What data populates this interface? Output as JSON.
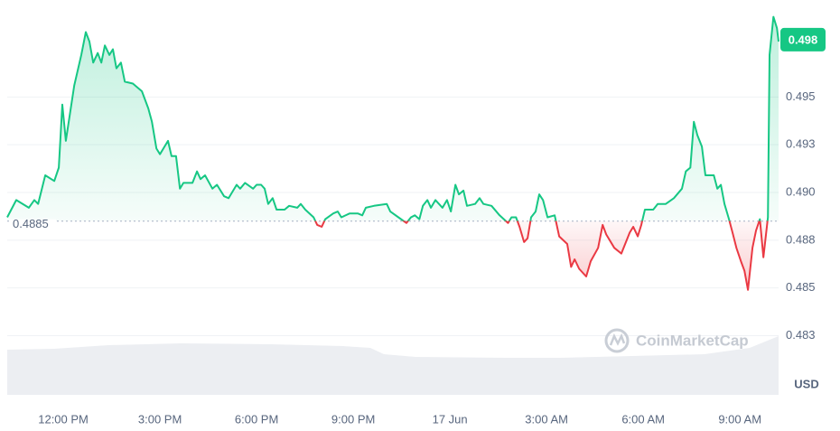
{
  "chart_data": {
    "type": "line",
    "color": "#16c784",
    "down_color": "#ea3943",
    "baseline": 0.4885,
    "current_price": 0.498,
    "y_unit": "USD",
    "watermark": "CoinMarketCap",
    "grid": true,
    "xlim": [
      -1.74,
      22.2
    ],
    "xticks": [
      {
        "value": 0,
        "label": "12:00 PM"
      },
      {
        "value": 3,
        "label": "3:00 PM"
      },
      {
        "value": 6,
        "label": "6:00 PM"
      },
      {
        "value": 9,
        "label": "9:00 PM"
      },
      {
        "value": 12,
        "label": "17 Jun"
      },
      {
        "value": 15,
        "label": "3:00 AM"
      },
      {
        "value": 18,
        "label": "6:00 AM"
      },
      {
        "value": 21,
        "label": "9:00 AM"
      }
    ],
    "ylim": [
      0.4794,
      0.4997
    ],
    "yticks": [
      {
        "value": 0.4825,
        "label": "0.483"
      },
      0.485,
      {
        "value": 0.4875,
        "label": "0.488"
      },
      {
        "value": 0.49,
        "label": "0.490"
      },
      {
        "value": 0.4925,
        "label": "0.493"
      },
      0.495
    ],
    "x": [
      -1.74,
      -1.46,
      -1.07,
      -0.9,
      -0.78,
      -0.56,
      -0.28,
      -0.14,
      -0.03,
      0.08,
      0.34,
      0.56,
      0.7,
      0.81,
      0.93,
      1.07,
      1.18,
      1.29,
      1.43,
      1.54,
      1.65,
      1.79,
      1.91,
      2.16,
      2.44,
      2.64,
      2.75,
      2.89,
      3.0,
      3.25,
      3.36,
      3.5,
      3.62,
      3.73,
      4.01,
      4.15,
      4.26,
      4.4,
      4.63,
      4.77,
      4.99,
      5.13,
      5.38,
      5.49,
      5.64,
      5.89,
      6.0,
      6.14,
      6.25,
      6.36,
      6.5,
      6.62,
      6.87,
      7.01,
      7.26,
      7.37,
      7.51,
      7.77,
      7.88,
      8.02,
      8.13,
      8.38,
      8.52,
      8.63,
      8.89,
      9.14,
      9.28,
      9.39,
      9.64,
      10.04,
      10.15,
      10.4,
      10.65,
      10.79,
      10.91,
      11.05,
      11.16,
      11.3,
      11.41,
      11.55,
      11.77,
      11.91,
      12.03,
      12.17,
      12.28,
      12.42,
      12.53,
      12.78,
      12.92,
      13.04,
      13.29,
      13.54,
      13.8,
      13.91,
      14.05,
      14.16,
      14.3,
      14.41,
      14.52,
      14.66,
      14.77,
      14.89,
      15.03,
      15.25,
      15.39,
      15.64,
      15.76,
      15.87,
      16.01,
      16.23,
      16.37,
      16.6,
      16.74,
      16.85,
      17.1,
      17.32,
      17.58,
      17.69,
      17.83,
      17.94,
      18.05,
      18.31,
      18.45,
      18.7,
      18.95,
      19.2,
      19.32,
      19.46,
      19.57,
      19.68,
      19.82,
      19.93,
      20.19,
      20.3,
      20.41,
      20.52,
      20.66,
      20.77,
      20.89,
      21.03,
      21.14,
      21.25,
      21.39,
      21.5,
      21.62,
      21.73,
      21.87,
      21.92,
      22.04,
      22.15,
      22.2
    ],
    "values": [
      0.4887,
      0.4896,
      0.4892,
      0.4896,
      0.4894,
      0.4909,
      0.4906,
      0.4913,
      0.4946,
      0.4927,
      0.4956,
      0.4972,
      0.4984,
      0.4979,
      0.4968,
      0.4973,
      0.4968,
      0.4977,
      0.4972,
      0.4975,
      0.4965,
      0.4968,
      0.4958,
      0.4957,
      0.4953,
      0.4944,
      0.4937,
      0.4923,
      0.492,
      0.4927,
      0.4919,
      0.4919,
      0.4902,
      0.4905,
      0.4905,
      0.4911,
      0.4907,
      0.4909,
      0.4902,
      0.4904,
      0.4898,
      0.4897,
      0.4904,
      0.4902,
      0.4905,
      0.4902,
      0.4904,
      0.4904,
      0.4902,
      0.4894,
      0.4897,
      0.4891,
      0.4891,
      0.4893,
      0.4892,
      0.4894,
      0.4891,
      0.4887,
      0.4883,
      0.4882,
      0.4886,
      0.4889,
      0.489,
      0.4887,
      0.4889,
      0.4889,
      0.4888,
      0.4892,
      0.4893,
      0.4894,
      0.489,
      0.4887,
      0.4884,
      0.4887,
      0.4888,
      0.4886,
      0.4893,
      0.4896,
      0.4892,
      0.4896,
      0.4892,
      0.4896,
      0.489,
      0.4904,
      0.4899,
      0.4901,
      0.4893,
      0.4894,
      0.4897,
      0.4894,
      0.4893,
      0.4888,
      0.4884,
      0.4887,
      0.4887,
      0.4882,
      0.4874,
      0.4876,
      0.4887,
      0.489,
      0.4899,
      0.4896,
      0.4887,
      0.4888,
      0.4877,
      0.4873,
      0.4861,
      0.4865,
      0.486,
      0.4856,
      0.4864,
      0.4871,
      0.4883,
      0.4878,
      0.4871,
      0.4868,
      0.4879,
      0.4882,
      0.4877,
      0.4883,
      0.4891,
      0.4891,
      0.4894,
      0.4894,
      0.4897,
      0.4902,
      0.4911,
      0.4913,
      0.4937,
      0.493,
      0.4924,
      0.4909,
      0.4909,
      0.4902,
      0.4904,
      0.4894,
      0.4886,
      0.4879,
      0.4871,
      0.4864,
      0.4859,
      0.4849,
      0.4871,
      0.488,
      0.4886,
      0.4866,
      0.4887,
      0.4972,
      0.4992,
      0.4986,
      0.4979
    ]
  }
}
